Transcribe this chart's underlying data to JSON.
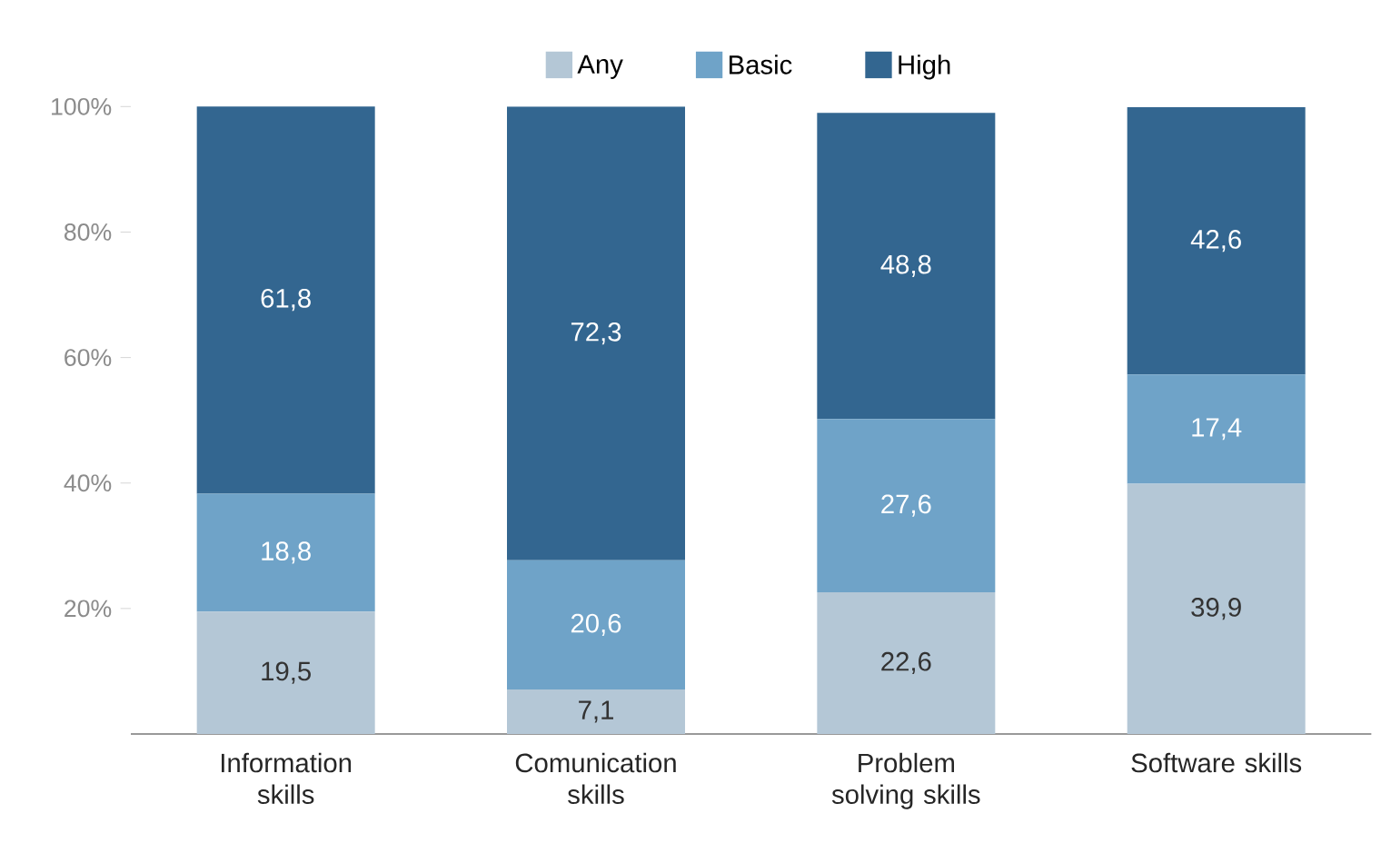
{
  "chart_data": {
    "type": "bar",
    "stacked": true,
    "legend": "top",
    "categories": [
      "Information skills",
      "Comunication skills",
      "Problem solving skills",
      "Software skills"
    ],
    "series": [
      {
        "name": "Any",
        "color": "#b4c7d6",
        "values": [
          19.5,
          7.1,
          22.6,
          39.9
        ],
        "value_labels": [
          "19,5",
          "7,1",
          "22,6",
          "39,9"
        ]
      },
      {
        "name": "Basic",
        "color": "#6fa3c8",
        "values": [
          18.8,
          20.6,
          27.6,
          17.4
        ],
        "value_labels": [
          "18,8",
          "20,6",
          "27,6",
          "17,4"
        ]
      },
      {
        "name": "High",
        "color": "#336690",
        "values": [
          61.8,
          72.3,
          48.8,
          42.6
        ],
        "value_labels": [
          "61,8",
          "72,3",
          "48,8",
          "42,6"
        ]
      }
    ],
    "ylim": [
      0,
      100
    ],
    "yticks": [
      {
        "value": 20,
        "label": "20%"
      },
      {
        "value": 40,
        "label": "40%"
      },
      {
        "value": 60,
        "label": "60%"
      },
      {
        "value": 80,
        "label": "80%"
      },
      {
        "value": 100,
        "label": "100%"
      }
    ]
  }
}
